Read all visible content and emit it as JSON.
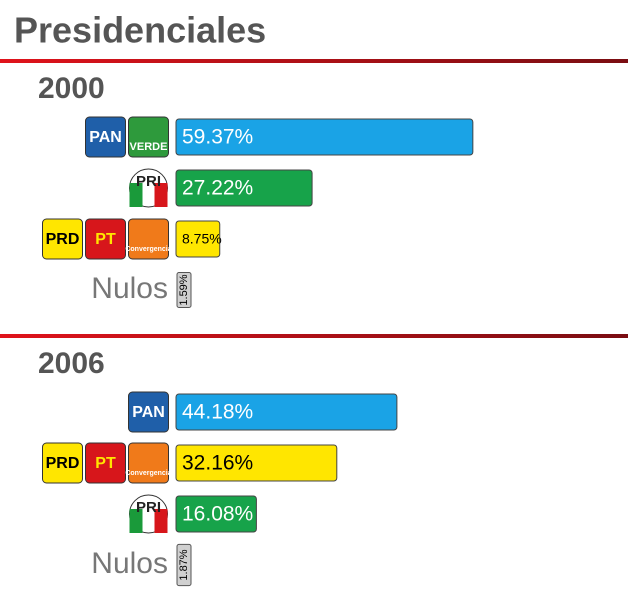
{
  "title": "Presidenciales",
  "chart_data": [
    {
      "type": "bar",
      "title": "2000",
      "categories": [
        null,
        null,
        null,
        "Nulos"
      ],
      "logos": [
        [
          {
            "label": "PAN",
            "color": "#1f5fa9",
            "text_color": "#ffffff",
            "shape": "square"
          },
          {
            "label": "VERDE",
            "color": "#2e9a3c",
            "text_color": "#ffffff",
            "shape": "square"
          }
        ],
        [
          {
            "label": "PRI",
            "color": "#1a9a3a",
            "text_color": "#ffffff",
            "shape": "circle"
          }
        ],
        [
          {
            "label": "PRD",
            "color": "#ffe600",
            "text_color": "#000000",
            "shape": "square"
          },
          {
            "label": "PT",
            "color": "#d7161b",
            "text_color": "#ffe600",
            "shape": "square"
          },
          {
            "label": "Convergencia",
            "color": "#f07a1a",
            "text_color": "#ffffff",
            "shape": "square"
          }
        ],
        []
      ],
      "values": [
        59.37,
        27.22,
        8.75,
        1.59
      ],
      "value_labels": [
        "59.37%",
        "27.22%",
        "8.75%",
        "1.59%"
      ],
      "colors": [
        "#1aa3e6",
        "#17a34a",
        "#ffe600",
        "#d0d0d0"
      ],
      "label_colors": [
        "#ffffff",
        "#ffffff",
        "#000000",
        "#000000"
      ]
    },
    {
      "type": "bar",
      "title": "2006",
      "categories": [
        null,
        null,
        null,
        "Nulos"
      ],
      "logos": [
        [
          {
            "label": "PAN",
            "color": "#1f5fa9",
            "text_color": "#ffffff",
            "shape": "square"
          }
        ],
        [
          {
            "label": "PRD",
            "color": "#ffe600",
            "text_color": "#000000",
            "shape": "square"
          },
          {
            "label": "PT",
            "color": "#d7161b",
            "text_color": "#ffe600",
            "shape": "square"
          },
          {
            "label": "Convergencia",
            "color": "#f07a1a",
            "text_color": "#ffffff",
            "shape": "square"
          }
        ],
        [
          {
            "label": "PRI",
            "color": "#1a9a3a",
            "text_color": "#ffffff",
            "shape": "circle"
          }
        ],
        []
      ],
      "values": [
        44.18,
        32.16,
        16.08,
        1.87
      ],
      "value_labels": [
        "44.18%",
        "32.16%",
        "16.08%",
        "1.87%"
      ],
      "colors": [
        "#1aa3e6",
        "#ffe600",
        "#17a34a",
        "#d0d0d0"
      ],
      "label_colors": [
        "#ffffff",
        "#000000",
        "#ffffff",
        "#000000"
      ]
    }
  ]
}
